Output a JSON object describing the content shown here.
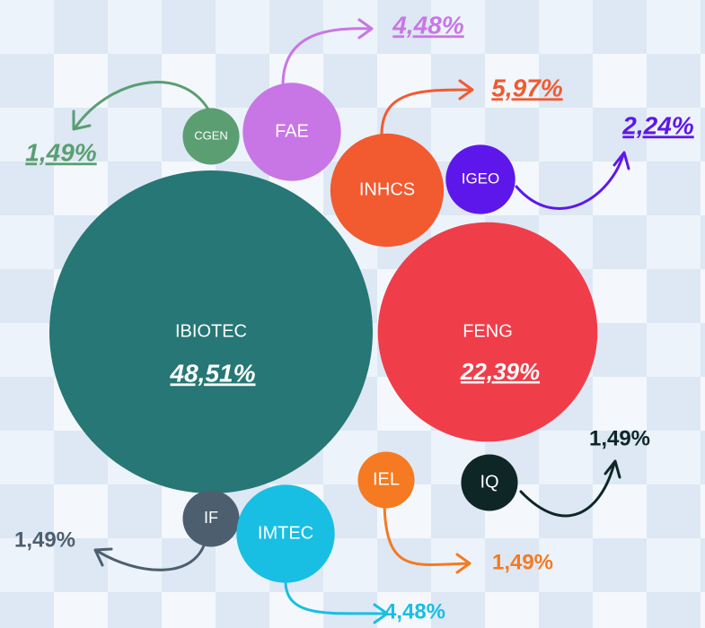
{
  "chart_data": {
    "type": "bubble",
    "categories": [
      "IBIOTEC",
      "FENG",
      "INHCS",
      "FAE",
      "CGEN",
      "IGEO",
      "IEL",
      "IQ",
      "IF",
      "IMTEC"
    ],
    "values": [
      48.51,
      22.39,
      5.97,
      4.48,
      1.49,
      2.24,
      1.49,
      1.49,
      1.49,
      4.48
    ],
    "value_labels": [
      "48,51%",
      "22,39%",
      "5,97%",
      "4,48%",
      "1,49%",
      "2,24%",
      "1,49%",
      "1,49%",
      "1,49%",
      "4,48%"
    ],
    "colors": [
      "#267775",
      "#ef3e4a",
      "#f25a30",
      "#c876e6",
      "#5a9e72",
      "#5e17eb",
      "#f57a22",
      "#0e2626",
      "#4d5f6f",
      "#18bfe2"
    ]
  }
}
